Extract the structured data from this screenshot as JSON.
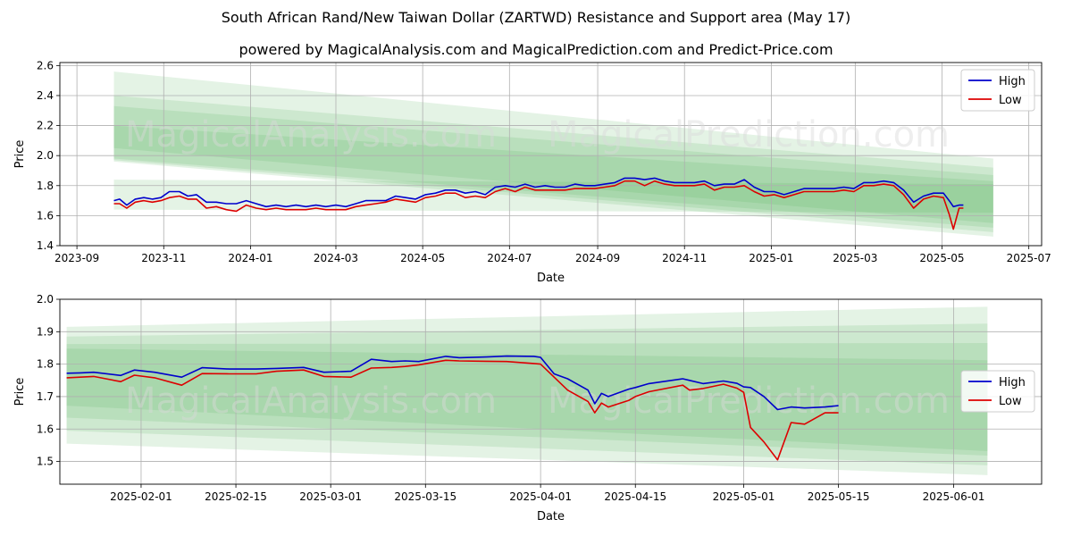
{
  "title": "South African Rand/New Taiwan Dollar (ZARTWD) Resistance and Support area (May 17)",
  "subtitle": "powered by MagicalAnalysis.com and MagicalPrediction.com and Predict-Price.com",
  "watermark": {
    "left": "MagicalAnalysis.com",
    "right": "MagicalPrediction.com"
  },
  "colors": {
    "high": "#0000cc",
    "low": "#dd0000",
    "band": "#4caf50"
  },
  "chart_data": [
    {
      "type": "line",
      "xlabel": "Date",
      "ylabel": "Price",
      "xlim": [
        "2023-08-20",
        "2025-07-10"
      ],
      "ylim": [
        1.4,
        2.62
      ],
      "yticks": [
        1.4,
        1.6,
        1.8,
        2.0,
        2.2,
        2.4,
        2.6
      ],
      "ytick_labels": [
        "1.4",
        "1.6",
        "1.8",
        "2.0",
        "2.2",
        "2.4",
        "2.6"
      ],
      "xticks": [
        "2023-09-01",
        "2023-11-01",
        "2024-01-01",
        "2024-03-01",
        "2024-05-01",
        "2024-07-01",
        "2024-09-01",
        "2024-11-01",
        "2025-01-01",
        "2025-03-01",
        "2025-05-01",
        "2025-07-01"
      ],
      "xtick_labels": [
        "2023-09",
        "2023-11",
        "2024-01",
        "2024-03",
        "2024-05",
        "2024-07",
        "2024-09",
        "2024-11",
        "2025-01",
        "2025-03",
        "2025-05",
        "2025-07"
      ],
      "grid": true,
      "legend": "top-right",
      "bands": [
        {
          "x": [
            "2023-09-27",
            "2025-06-06"
          ],
          "upper": [
            2.56,
            1.98
          ],
          "lower": [
            1.96,
            1.46
          ]
        },
        {
          "x": [
            "2023-09-27",
            "2025-06-06"
          ],
          "upper": [
            2.4,
            1.92
          ],
          "lower": [
            1.97,
            1.49
          ]
        },
        {
          "x": [
            "2023-09-27",
            "2025-06-06"
          ],
          "upper": [
            2.33,
            1.87
          ],
          "lower": [
            1.98,
            1.52
          ]
        },
        {
          "x": [
            "2023-09-27",
            "2025-06-06"
          ],
          "upper": [
            2.2,
            1.83
          ],
          "lower": [
            2.05,
            1.55
          ]
        },
        {
          "x": [
            "2023-09-27",
            "2025-06-06"
          ],
          "upper": [
            1.84,
            1.81
          ],
          "lower": [
            1.64,
            1.62
          ]
        }
      ],
      "series": [
        {
          "name": "High",
          "x": [
            "2023-09-27",
            "2023-10-01",
            "2023-10-06",
            "2023-10-12",
            "2023-10-18",
            "2023-10-24",
            "2023-10-30",
            "2023-11-05",
            "2023-11-12",
            "2023-11-18",
            "2023-11-24",
            "2023-12-01",
            "2023-12-08",
            "2023-12-15",
            "2023-12-22",
            "2023-12-29",
            "2024-01-05",
            "2024-01-12",
            "2024-01-19",
            "2024-01-26",
            "2024-02-02",
            "2024-02-09",
            "2024-02-16",
            "2024-02-23",
            "2024-03-01",
            "2024-03-08",
            "2024-03-15",
            "2024-03-22",
            "2024-03-29",
            "2024-04-05",
            "2024-04-12",
            "2024-04-19",
            "2024-04-26",
            "2024-05-03",
            "2024-05-10",
            "2024-05-17",
            "2024-05-24",
            "2024-05-31",
            "2024-06-07",
            "2024-06-14",
            "2024-06-21",
            "2024-06-28",
            "2024-07-05",
            "2024-07-12",
            "2024-07-19",
            "2024-07-26",
            "2024-08-02",
            "2024-08-09",
            "2024-08-16",
            "2024-08-23",
            "2024-08-30",
            "2024-09-06",
            "2024-09-13",
            "2024-09-20",
            "2024-09-27",
            "2024-10-04",
            "2024-10-11",
            "2024-10-18",
            "2024-10-25",
            "2024-11-01",
            "2024-11-08",
            "2024-11-15",
            "2024-11-22",
            "2024-11-29",
            "2024-12-06",
            "2024-12-13",
            "2024-12-20",
            "2024-12-27",
            "2025-01-03",
            "2025-01-10",
            "2025-01-17",
            "2025-01-24",
            "2025-01-31",
            "2025-02-07",
            "2025-02-14",
            "2025-02-21",
            "2025-02-28",
            "2025-03-07",
            "2025-03-14",
            "2025-03-21",
            "2025-03-28",
            "2025-04-04",
            "2025-04-11",
            "2025-04-18",
            "2025-04-25",
            "2025-05-02",
            "2025-05-06",
            "2025-05-09",
            "2025-05-13",
            "2025-05-16"
          ],
          "y": [
            1.7,
            1.71,
            1.67,
            1.71,
            1.72,
            1.71,
            1.72,
            1.76,
            1.76,
            1.73,
            1.74,
            1.69,
            1.69,
            1.68,
            1.68,
            1.7,
            1.68,
            1.66,
            1.67,
            1.66,
            1.67,
            1.66,
            1.67,
            1.66,
            1.67,
            1.66,
            1.68,
            1.7,
            1.7,
            1.7,
            1.73,
            1.72,
            1.71,
            1.74,
            1.75,
            1.77,
            1.77,
            1.75,
            1.76,
            1.74,
            1.79,
            1.8,
            1.79,
            1.81,
            1.79,
            1.8,
            1.79,
            1.79,
            1.81,
            1.8,
            1.8,
            1.81,
            1.82,
            1.85,
            1.85,
            1.84,
            1.85,
            1.83,
            1.82,
            1.82,
            1.82,
            1.83,
            1.8,
            1.81,
            1.81,
            1.84,
            1.79,
            1.76,
            1.76,
            1.74,
            1.76,
            1.78,
            1.78,
            1.78,
            1.78,
            1.79,
            1.78,
            1.82,
            1.82,
            1.83,
            1.82,
            1.77,
            1.69,
            1.73,
            1.75,
            1.75,
            1.7,
            1.66,
            1.67,
            1.67
          ]
        },
        {
          "name": "Low",
          "x": [
            "2023-09-27",
            "2023-10-01",
            "2023-10-06",
            "2023-10-12",
            "2023-10-18",
            "2023-10-24",
            "2023-10-30",
            "2023-11-05",
            "2023-11-12",
            "2023-11-18",
            "2023-11-24",
            "2023-12-01",
            "2023-12-08",
            "2023-12-15",
            "2023-12-22",
            "2023-12-29",
            "2024-01-05",
            "2024-01-12",
            "2024-01-19",
            "2024-01-26",
            "2024-02-02",
            "2024-02-09",
            "2024-02-16",
            "2024-02-23",
            "2024-03-01",
            "2024-03-08",
            "2024-03-15",
            "2024-03-22",
            "2024-03-29",
            "2024-04-05",
            "2024-04-12",
            "2024-04-19",
            "2024-04-26",
            "2024-05-03",
            "2024-05-10",
            "2024-05-17",
            "2024-05-24",
            "2024-05-31",
            "2024-06-07",
            "2024-06-14",
            "2024-06-21",
            "2024-06-28",
            "2024-07-05",
            "2024-07-12",
            "2024-07-19",
            "2024-07-26",
            "2024-08-02",
            "2024-08-09",
            "2024-08-16",
            "2024-08-23",
            "2024-08-30",
            "2024-09-06",
            "2024-09-13",
            "2024-09-20",
            "2024-09-27",
            "2024-10-04",
            "2024-10-11",
            "2024-10-18",
            "2024-10-25",
            "2024-11-01",
            "2024-11-08",
            "2024-11-15",
            "2024-11-22",
            "2024-11-29",
            "2024-12-06",
            "2024-12-13",
            "2024-12-20",
            "2024-12-27",
            "2025-01-03",
            "2025-01-10",
            "2025-01-17",
            "2025-01-24",
            "2025-01-31",
            "2025-02-07",
            "2025-02-14",
            "2025-02-21",
            "2025-02-28",
            "2025-03-07",
            "2025-03-14",
            "2025-03-21",
            "2025-03-28",
            "2025-04-04",
            "2025-04-11",
            "2025-04-18",
            "2025-04-25",
            "2025-05-02",
            "2025-05-06",
            "2025-05-09",
            "2025-05-13",
            "2025-05-16"
          ],
          "y": [
            1.68,
            1.68,
            1.65,
            1.69,
            1.7,
            1.69,
            1.7,
            1.72,
            1.73,
            1.71,
            1.71,
            1.65,
            1.66,
            1.64,
            1.63,
            1.67,
            1.65,
            1.64,
            1.65,
            1.64,
            1.64,
            1.64,
            1.65,
            1.64,
            1.64,
            1.64,
            1.66,
            1.67,
            1.68,
            1.69,
            1.71,
            1.7,
            1.69,
            1.72,
            1.73,
            1.75,
            1.75,
            1.72,
            1.73,
            1.72,
            1.76,
            1.78,
            1.76,
            1.79,
            1.77,
            1.77,
            1.77,
            1.77,
            1.78,
            1.78,
            1.78,
            1.79,
            1.8,
            1.83,
            1.83,
            1.8,
            1.83,
            1.81,
            1.8,
            1.8,
            1.8,
            1.81,
            1.77,
            1.79,
            1.79,
            1.8,
            1.76,
            1.73,
            1.74,
            1.72,
            1.74,
            1.76,
            1.76,
            1.76,
            1.76,
            1.77,
            1.76,
            1.8,
            1.8,
            1.81,
            1.8,
            1.74,
            1.65,
            1.71,
            1.73,
            1.72,
            1.61,
            1.51,
            1.65,
            1.65
          ]
        }
      ]
    },
    {
      "type": "line",
      "xlabel": "Date",
      "ylabel": "Price",
      "xlim": [
        "2025-01-20",
        "2025-06-14"
      ],
      "ylim": [
        1.43,
        2.0
      ],
      "yticks": [
        1.5,
        1.6,
        1.7,
        1.8,
        1.9,
        2.0
      ],
      "ytick_labels": [
        "1.5",
        "1.6",
        "1.7",
        "1.8",
        "1.9",
        "2.0"
      ],
      "xticks": [
        "2025-02-01",
        "2025-02-15",
        "2025-03-01",
        "2025-03-15",
        "2025-04-01",
        "2025-04-15",
        "2025-05-01",
        "2025-05-15",
        "2025-06-01"
      ],
      "xtick_labels": [
        "2025-02-01",
        "2025-02-15",
        "2025-03-01",
        "2025-03-15",
        "2025-04-01",
        "2025-04-15",
        "2025-05-01",
        "2025-05-15",
        "2025-06-01"
      ],
      "grid": true,
      "legend": "center-right",
      "bands": [
        {
          "x": [
            "2025-01-21",
            "2025-06-06"
          ],
          "upper": [
            1.915,
            1.977
          ],
          "lower": [
            1.555,
            1.458
          ]
        },
        {
          "x": [
            "2025-01-21",
            "2025-06-06"
          ],
          "upper": [
            1.885,
            1.925
          ],
          "lower": [
            1.595,
            1.488
          ]
        },
        {
          "x": [
            "2025-01-21",
            "2025-06-06"
          ],
          "upper": [
            1.862,
            1.865
          ],
          "lower": [
            1.635,
            1.518
          ]
        },
        {
          "x": [
            "2025-01-21",
            "2025-06-06"
          ],
          "upper": [
            1.848,
            1.812
          ],
          "lower": [
            1.672,
            1.532
          ]
        }
      ],
      "series": [
        {
          "name": "High",
          "x": [
            "2025-01-21",
            "2025-01-23",
            "2025-01-25",
            "2025-01-29",
            "2025-01-31",
            "2025-02-03",
            "2025-02-07",
            "2025-02-10",
            "2025-02-14",
            "2025-02-18",
            "2025-02-21",
            "2025-02-25",
            "2025-02-28",
            "2025-03-04",
            "2025-03-07",
            "2025-03-10",
            "2025-03-12",
            "2025-03-14",
            "2025-03-18",
            "2025-03-20",
            "2025-03-24",
            "2025-03-27",
            "2025-03-31",
            "2025-04-01",
            "2025-04-03",
            "2025-04-05",
            "2025-04-08",
            "2025-04-09",
            "2025-04-10",
            "2025-04-11",
            "2025-04-14",
            "2025-04-15",
            "2025-04-17",
            "2025-04-22",
            "2025-04-23",
            "2025-04-25",
            "2025-04-28",
            "2025-04-30",
            "2025-05-01",
            "2025-05-02",
            "2025-05-04",
            "2025-05-06",
            "2025-05-08",
            "2025-05-10",
            "2025-05-13",
            "2025-05-15"
          ],
          "y": [
            1.772,
            1.773,
            1.775,
            1.765,
            1.782,
            1.775,
            1.76,
            1.789,
            1.785,
            1.785,
            1.787,
            1.79,
            1.775,
            1.778,
            1.815,
            1.808,
            1.81,
            1.808,
            1.824,
            1.82,
            1.822,
            1.825,
            1.824,
            1.821,
            1.77,
            1.755,
            1.72,
            1.678,
            1.71,
            1.7,
            1.723,
            1.728,
            1.74,
            1.755,
            1.75,
            1.74,
            1.748,
            1.741,
            1.73,
            1.728,
            1.7,
            1.66,
            1.668,
            1.665,
            1.668,
            1.672
          ]
        },
        {
          "name": "Low",
          "x": [
            "2025-01-21",
            "2025-01-23",
            "2025-01-25",
            "2025-01-29",
            "2025-01-31",
            "2025-02-03",
            "2025-02-07",
            "2025-02-10",
            "2025-02-14",
            "2025-02-18",
            "2025-02-21",
            "2025-02-25",
            "2025-02-28",
            "2025-03-04",
            "2025-03-07",
            "2025-03-10",
            "2025-03-12",
            "2025-03-14",
            "2025-03-18",
            "2025-03-20",
            "2025-03-24",
            "2025-03-27",
            "2025-03-31",
            "2025-04-01",
            "2025-04-03",
            "2025-04-05",
            "2025-04-08",
            "2025-04-09",
            "2025-04-10",
            "2025-04-11",
            "2025-04-14",
            "2025-04-15",
            "2025-04-17",
            "2025-04-22",
            "2025-04-23",
            "2025-04-25",
            "2025-04-28",
            "2025-04-30",
            "2025-05-01",
            "2025-05-02",
            "2025-05-04",
            "2025-05-06",
            "2025-05-08",
            "2025-05-10",
            "2025-05-13",
            "2025-05-15"
          ],
          "y": [
            1.758,
            1.76,
            1.762,
            1.746,
            1.766,
            1.758,
            1.735,
            1.771,
            1.77,
            1.77,
            1.778,
            1.782,
            1.762,
            1.76,
            1.788,
            1.79,
            1.793,
            1.798,
            1.812,
            1.81,
            1.809,
            1.808,
            1.802,
            1.8,
            1.76,
            1.72,
            1.685,
            1.65,
            1.68,
            1.668,
            1.688,
            1.7,
            1.715,
            1.735,
            1.72,
            1.725,
            1.738,
            1.726,
            1.713,
            1.605,
            1.56,
            1.505,
            1.62,
            1.615,
            1.65,
            1.65
          ]
        }
      ]
    }
  ]
}
